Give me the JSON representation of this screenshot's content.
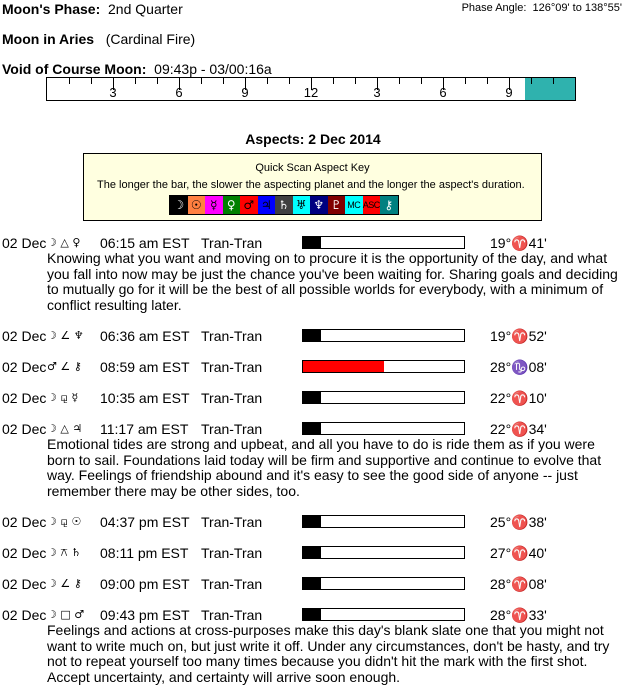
{
  "moon_phase": {
    "label": "Moon's Phase:",
    "value": "2nd Quarter"
  },
  "phase_angle": {
    "label": "Phase Angle:",
    "value": "126°09' to 138°55'"
  },
  "moon_sign": {
    "label": "Moon in Aries",
    "value": "(Cardinal Fire)"
  },
  "void_of_course": {
    "label": "Void of Course Moon:",
    "value": "09:43p - 03/00:16a",
    "start_hour": 21.72,
    "end_hour": 24
  },
  "timeline_labels": [
    "3",
    "6",
    "9",
    "12",
    "3",
    "6",
    "9"
  ],
  "timeline_color": "#2fb2ae",
  "aspects_title": "Aspects: 2 Dec 2014",
  "key": {
    "title": "Quick Scan Aspect Key",
    "description": "The longer the bar, the slower the aspecting planet and the longer the aspect's duration.",
    "planets": [
      {
        "name": "moon",
        "glyph": "☽",
        "bg": "#000000",
        "fg": "#ffffff"
      },
      {
        "name": "sun",
        "glyph": "☉",
        "bg": "#ff8040",
        "fg": "#000000"
      },
      {
        "name": "mercury",
        "glyph": "☿",
        "bg": "#ff00ff",
        "fg": "#000000"
      },
      {
        "name": "venus",
        "glyph": "♀",
        "bg": "#008000",
        "fg": "#ffffff"
      },
      {
        "name": "mars",
        "glyph": "♂",
        "bg": "#ff0000",
        "fg": "#000000"
      },
      {
        "name": "jupiter",
        "glyph": "♃",
        "bg": "#0000ff",
        "fg": "#000000"
      },
      {
        "name": "saturn",
        "glyph": "♄",
        "bg": "#404040",
        "fg": "#ffffff"
      },
      {
        "name": "uranus",
        "glyph": "♅",
        "bg": "#00ffff",
        "fg": "#000000"
      },
      {
        "name": "neptune",
        "glyph": "♆",
        "bg": "#000080",
        "fg": "#ffffff"
      },
      {
        "name": "pluto",
        "glyph": "♇",
        "bg": "#800000",
        "fg": "#ffffff"
      },
      {
        "name": "mc",
        "glyph": "MC",
        "bg": "#00ffff",
        "fg": "#000000"
      },
      {
        "name": "asc",
        "glyph": "ASC",
        "bg": "#ff0000",
        "fg": "#000000"
      },
      {
        "name": "chiron",
        "glyph": "⚷",
        "bg": "#008080",
        "fg": "#ffffff"
      }
    ]
  },
  "aspects": [
    {
      "date": "02 Dec",
      "glyphs": "☽ △ ♀",
      "time": "06:15 am EST",
      "type": "Tran-Tran",
      "duration": 0.11,
      "bar_color": "#000000",
      "position": "19°♈41'",
      "text": "Knowing what you want and moving on to procure it is the opportunity of the day, and what you fall into now may be just the chance you've been waiting for. Sharing goals and deciding to mutually go for it will be the best of all possible worlds for everybody, with a minimum of conflict resulting later."
    },
    {
      "date": "02 Dec",
      "glyphs": "☽ ∠ ♆",
      "time": "06:36 am EST",
      "type": "Tran-Tran",
      "duration": 0.11,
      "bar_color": "#000000",
      "position": "19°♈52'",
      "text": ""
    },
    {
      "date": "02 Dec",
      "glyphs": "♂ ∠ ⚷",
      "time": "08:59 am EST",
      "type": "Tran-Tran",
      "duration": 0.5,
      "bar_color": "#ff0000",
      "position": "28°♑08'",
      "text": ""
    },
    {
      "date": "02 Dec",
      "glyphs": "☽ ⚼ ☿",
      "time": "10:35 am EST",
      "type": "Tran-Tran",
      "duration": 0.11,
      "bar_color": "#000000",
      "position": "22°♈10'",
      "text": ""
    },
    {
      "date": "02 Dec",
      "glyphs": "☽ △ ♃",
      "time": "11:17 am EST",
      "type": "Tran-Tran",
      "duration": 0.11,
      "bar_color": "#000000",
      "position": "22°♈34'",
      "text": "Emotional tides are strong and upbeat, and all you have to do is ride them as if you were born to sail. Foundations laid today will be firm and supportive and continue to evolve that way. Feelings of friendship abound and it's easy to see the good side of anyone -- just remember there may be other sides, too."
    },
    {
      "date": "02 Dec",
      "glyphs": "☽ ⚼ ☉",
      "time": "04:37 pm EST",
      "type": "Tran-Tran",
      "duration": 0.11,
      "bar_color": "#000000",
      "position": "25°♈38'",
      "text": ""
    },
    {
      "date": "02 Dec",
      "glyphs": "☽ ⚻ ♄",
      "time": "08:11 pm EST",
      "type": "Tran-Tran",
      "duration": 0.11,
      "bar_color": "#000000",
      "position": "27°♈40'",
      "text": ""
    },
    {
      "date": "02 Dec",
      "glyphs": "☽ ∠ ⚷",
      "time": "09:00 pm EST",
      "type": "Tran-Tran",
      "duration": 0.11,
      "bar_color": "#000000",
      "position": "28°♈08'",
      "text": ""
    },
    {
      "date": "02 Dec",
      "glyphs": "☽ □ ♂",
      "time": "09:43 pm EST",
      "type": "Tran-Tran",
      "duration": 0.11,
      "bar_color": "#000000",
      "position": "28°♈33'",
      "text": "Feelings and actions at cross-purposes make this day's blank slate one that you might not want to write much on, but just write it off. Under any circumstances, don't be hasty, and try not to repeat yourself too many times because you didn't hit the mark with the first shot. Accept uncertainty, and certainty will arrive soon enough."
    }
  ]
}
